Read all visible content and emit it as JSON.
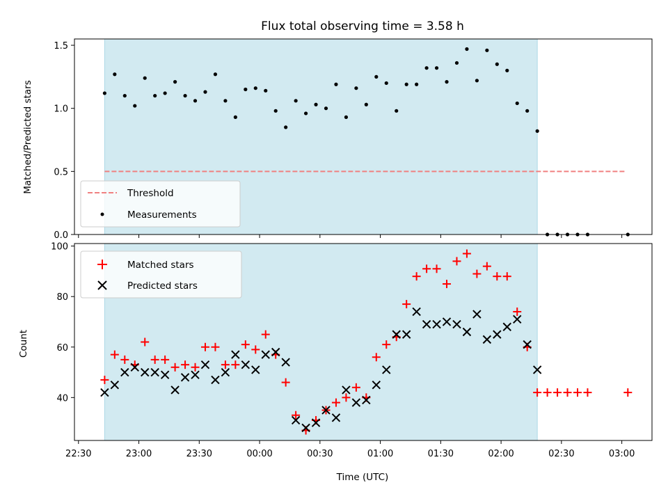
{
  "chart_data": [
    {
      "type": "scatter",
      "title": "Flux total observing time = 3.58 h",
      "xlabel": "",
      "ylabel": "Matched/Predicted stars",
      "ylim": [
        0,
        1.55
      ],
      "yticks": [
        "0.0",
        "0.5",
        "1.0",
        "1.5"
      ],
      "shaded_span": {
        "start": "22:43",
        "end": "02:18"
      },
      "threshold": {
        "name": "Threshold",
        "value": 0.5,
        "x_start": "22:43",
        "x_end": "03:02",
        "color": "#f08080"
      },
      "legend": {
        "position": "lower-left",
        "entries": [
          "Threshold",
          "Measurements"
        ]
      },
      "series": [
        {
          "name": "Measurements",
          "color": "#000000",
          "x": [
            "22:43",
            "22:48",
            "22:53",
            "22:58",
            "23:03",
            "23:08",
            "23:13",
            "23:18",
            "23:23",
            "23:28",
            "23:33",
            "23:38",
            "23:43",
            "23:48",
            "23:53",
            "23:58",
            "00:03",
            "00:08",
            "00:13",
            "00:18",
            "00:23",
            "00:28",
            "00:33",
            "00:38",
            "00:43",
            "00:48",
            "00:53",
            "00:58",
            "01:03",
            "01:08",
            "01:13",
            "01:18",
            "01:23",
            "01:28",
            "01:33",
            "01:38",
            "01:43",
            "01:48",
            "01:53",
            "01:58",
            "02:03",
            "02:08",
            "02:13",
            "02:18",
            "02:23",
            "02:28",
            "02:33",
            "02:38",
            "02:43",
            "03:03"
          ],
          "y": [
            1.12,
            1.27,
            1.1,
            1.02,
            1.24,
            1.1,
            1.12,
            1.21,
            1.1,
            1.06,
            1.13,
            1.27,
            1.06,
            0.93,
            1.15,
            1.16,
            1.14,
            0.98,
            0.85,
            1.06,
            0.96,
            1.03,
            1.0,
            1.19,
            0.93,
            1.16,
            1.03,
            1.25,
            1.2,
            0.98,
            1.19,
            1.19,
            1.32,
            1.32,
            1.21,
            1.36,
            1.47,
            1.22,
            1.46,
            1.35,
            1.3,
            1.04,
            0.98,
            0.82,
            0,
            0,
            0,
            0,
            0,
            0
          ]
        }
      ]
    },
    {
      "type": "scatter",
      "title": "",
      "xlabel": "Time (UTC)",
      "ylabel": "Count",
      "ylim": [
        23,
        101
      ],
      "yticks": [
        "40",
        "60",
        "80",
        "100"
      ],
      "xticks": [
        "22:30",
        "23:00",
        "23:30",
        "00:00",
        "00:30",
        "01:00",
        "01:30",
        "02:00",
        "02:30",
        "03:00"
      ],
      "shaded_span": {
        "start": "22:43",
        "end": "02:18"
      },
      "legend": {
        "position": "upper-left",
        "entries": [
          "Matched stars",
          "Predicted stars"
        ]
      },
      "series": [
        {
          "name": "Matched stars",
          "color": "#ff0000",
          "marker": "plus",
          "x": [
            "22:43",
            "22:48",
            "22:53",
            "22:58",
            "23:03",
            "23:08",
            "23:13",
            "23:18",
            "23:23",
            "23:28",
            "23:33",
            "23:38",
            "23:43",
            "23:48",
            "23:53",
            "23:58",
            "00:03",
            "00:08",
            "00:13",
            "00:18",
            "00:23",
            "00:28",
            "00:33",
            "00:38",
            "00:43",
            "00:48",
            "00:53",
            "00:58",
            "01:03",
            "01:08",
            "01:13",
            "01:18",
            "01:23",
            "01:28",
            "01:33",
            "01:38",
            "01:43",
            "01:48",
            "01:53",
            "01:58",
            "02:03",
            "02:08",
            "02:13",
            "02:18",
            "02:23",
            "02:28",
            "02:33",
            "02:38",
            "02:43",
            "03:03"
          ],
          "y": [
            47,
            57,
            55,
            53,
            62,
            55,
            55,
            52,
            53,
            52,
            60,
            60,
            53,
            53,
            61,
            59,
            65,
            57,
            46,
            33,
            27,
            31,
            35,
            38,
            40,
            44,
            40,
            56,
            61,
            64,
            77,
            88,
            91,
            91,
            85,
            94,
            97,
            89,
            92,
            88,
            88,
            74,
            60,
            42,
            42,
            42,
            42,
            42,
            42,
            42
          ]
        },
        {
          "name": "Predicted stars",
          "color": "#000000",
          "marker": "x",
          "x": [
            "22:43",
            "22:48",
            "22:53",
            "22:58",
            "23:03",
            "23:08",
            "23:13",
            "23:18",
            "23:23",
            "23:28",
            "23:33",
            "23:38",
            "23:43",
            "23:48",
            "23:53",
            "23:58",
            "00:03",
            "00:08",
            "00:13",
            "00:18",
            "00:23",
            "00:28",
            "00:33",
            "00:38",
            "00:43",
            "00:48",
            "00:53",
            "00:58",
            "01:03",
            "01:08",
            "01:13",
            "01:18",
            "01:23",
            "01:28",
            "01:33",
            "01:38",
            "01:43",
            "01:48",
            "01:53",
            "01:58",
            "02:03",
            "02:08",
            "02:13",
            "02:18"
          ],
          "y": [
            42,
            45,
            50,
            52,
            50,
            50,
            49,
            43,
            48,
            49,
            53,
            47,
            50,
            57,
            53,
            51,
            57,
            58,
            54,
            31,
            28,
            30,
            35,
            32,
            43,
            38,
            39,
            45,
            51,
            65,
            65,
            74,
            69,
            69,
            70,
            69,
            66,
            73,
            63,
            65,
            68,
            71,
            61,
            51
          ]
        }
      ]
    }
  ],
  "legend": {
    "threshold_label": "Threshold",
    "measurements_label": "Measurements",
    "matched_label": "Matched stars",
    "predicted_label": "Predicted stars"
  },
  "colors": {
    "shade": "#add8e6",
    "threshold": "#f08080",
    "matched": "#ff0000",
    "predicted": "#000000",
    "measurement": "#000000"
  }
}
